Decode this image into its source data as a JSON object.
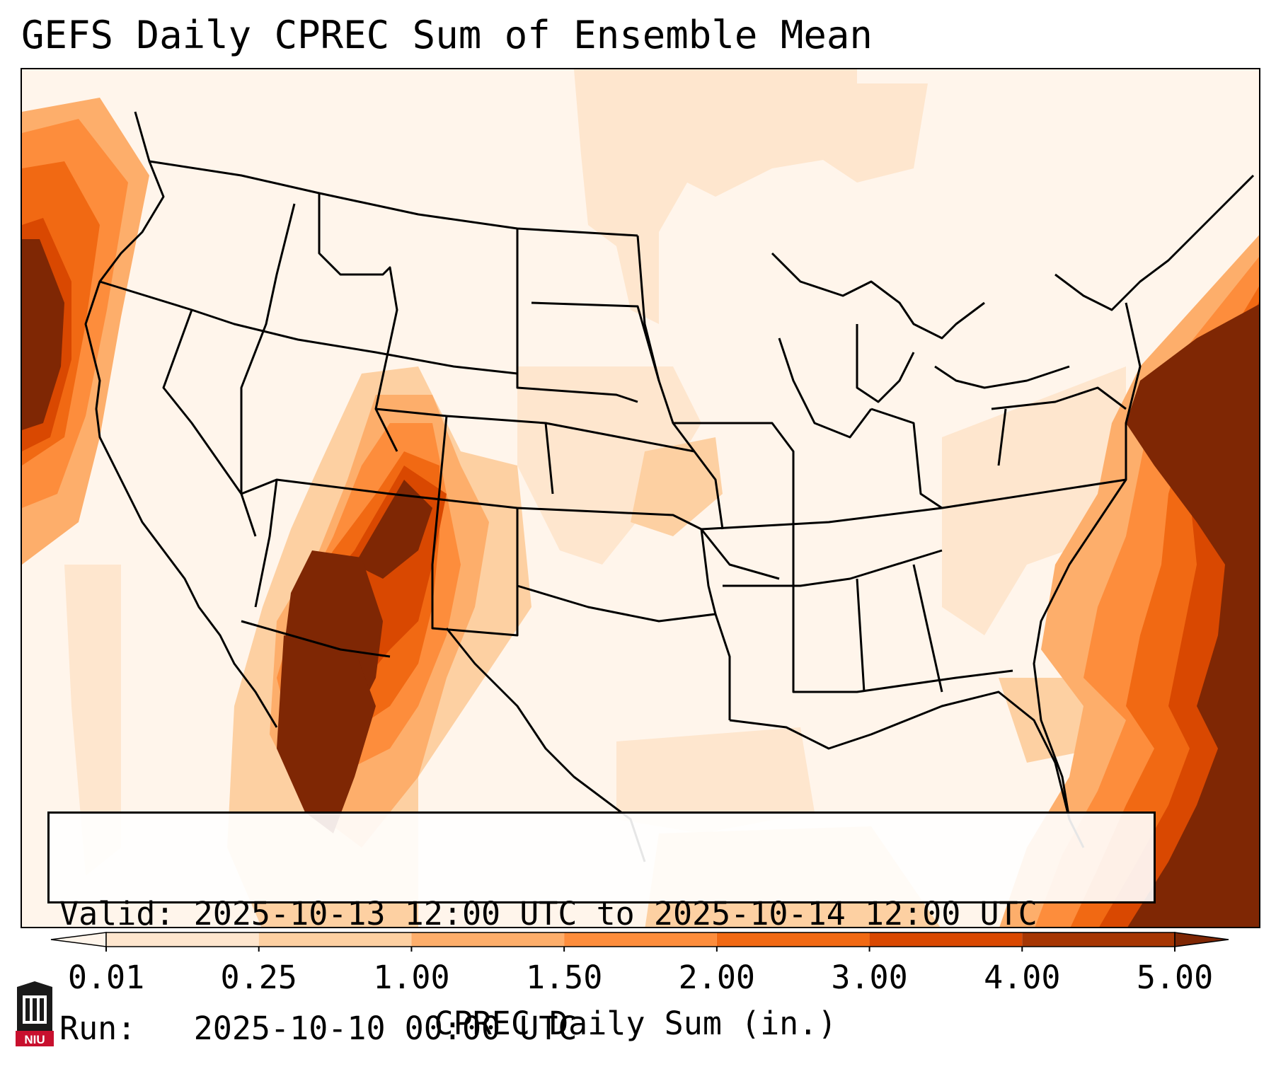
{
  "title": "GEFS Daily CPREC Sum of Ensemble Mean",
  "info": {
    "valid_label": "Valid:",
    "valid_value": "2025-10-13 12:00 UTC to 2025-10-14 12:00 UTC",
    "run_label": "Run:",
    "run_value": "2025-10-10 00:00 UTC"
  },
  "colorbar": {
    "label": "CPREC Daily Sum (in.)",
    "ticks": [
      "0.01",
      "0.25",
      "1.00",
      "1.50",
      "2.00",
      "3.00",
      "4.00",
      "5.00"
    ],
    "colors": [
      "#fff5eb",
      "#fee6ce",
      "#fdd0a2",
      "#fdae6b",
      "#fd8d3c",
      "#f16913",
      "#d94801",
      "#a63603",
      "#7f2704"
    ]
  },
  "logo": {
    "text": "NIU"
  },
  "map": {
    "region": "Contiguous United States",
    "heavy_precip_areas": [
      "Pacific Ocean off Oregon/California",
      "Arizona / New Mexico / northern Mexico",
      "Western Atlantic off the East Coast"
    ]
  }
}
